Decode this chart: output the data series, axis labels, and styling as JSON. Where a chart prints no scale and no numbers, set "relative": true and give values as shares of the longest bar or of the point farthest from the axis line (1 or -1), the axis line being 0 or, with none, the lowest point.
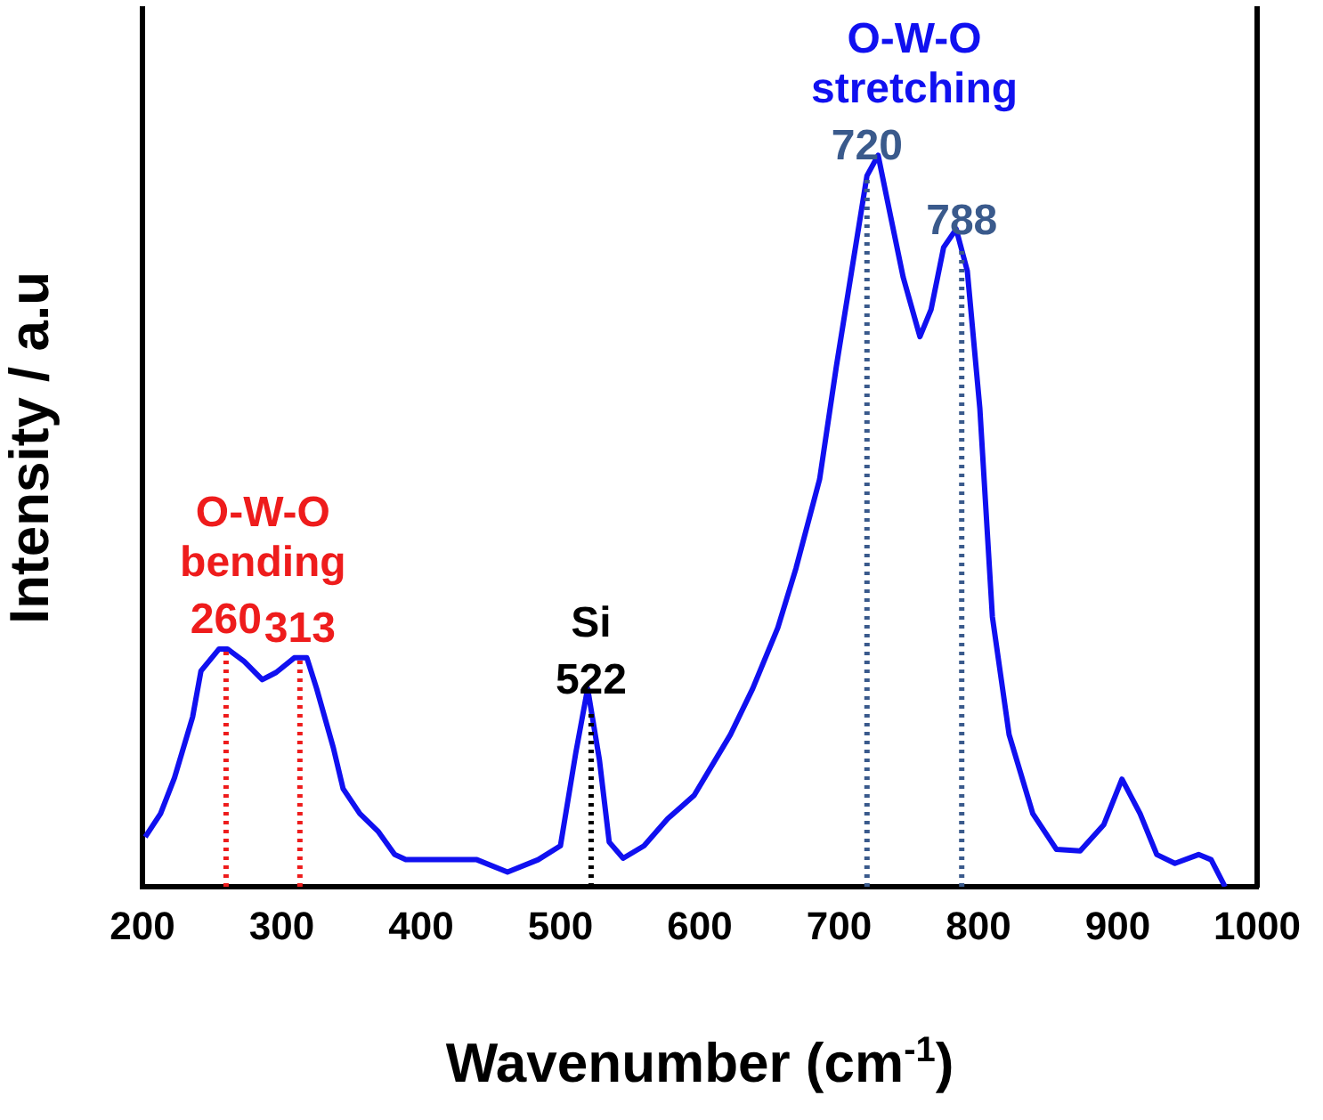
{
  "chart_data": {
    "type": "line",
    "relative": true,
    "xlabel": "Wavenumber (cm$^{-1}$)",
    "ylabel": "Intensity / a.u",
    "xlim": [
      200,
      1000
    ],
    "xticks": [
      200,
      300,
      400,
      500,
      600,
      700,
      800,
      900,
      1000
    ],
    "grid": false,
    "legend": false,
    "marker": "none",
    "line_style": "solid",
    "series": [
      {
        "color": "#1010f0",
        "x": [
          202,
          213,
          223,
          236,
          242,
          255,
          261,
          273,
          286,
          296,
          309,
          318,
          325,
          337,
          344,
          356,
          369,
          381,
          389,
          415,
          440,
          462,
          484,
          500,
          511,
          519.5,
          528,
          535,
          545,
          560,
          577,
          596,
          622,
          638,
          656,
          669,
          686,
          698,
          709,
          720,
          728,
          737,
          746,
          758,
          766,
          775,
          784,
          792,
          801,
          810,
          822,
          839,
          856,
          873,
          890,
          903,
          916,
          928,
          941,
          958,
          967,
          977
        ],
        "values": [
          0.068,
          0.1,
          0.149,
          0.232,
          0.295,
          0.325,
          0.325,
          0.308,
          0.283,
          0.293,
          0.313,
          0.313,
          0.271,
          0.19,
          0.134,
          0.1,
          0.076,
          0.044,
          0.037,
          0.037,
          0.037,
          0.02,
          0.037,
          0.056,
          0.183,
          0.271,
          0.173,
          0.061,
          0.039,
          0.056,
          0.093,
          0.125,
          0.208,
          0.271,
          0.354,
          0.435,
          0.557,
          0.711,
          0.842,
          0.972,
          1,
          0.916,
          0.833,
          0.752,
          0.789,
          0.874,
          0.899,
          0.842,
          0.654,
          0.369,
          0.208,
          0.1,
          0.051,
          0.049,
          0.085,
          0.147,
          0.1,
          0.044,
          0.032,
          0.044,
          0.037,
          0
        ]
      }
    ],
    "ref_lines": [
      {
        "axis": "x",
        "value": 260,
        "label": "260",
        "color": "#ee1c1c",
        "line_style": "dotted"
      },
      {
        "axis": "x",
        "value": 313,
        "label": "313",
        "color": "#ee1c1c",
        "line_style": "dotted"
      },
      {
        "axis": "x",
        "value": 522,
        "label": "522",
        "color": "#000000",
        "line_style": "dotted"
      },
      {
        "axis": "x",
        "value": 720,
        "label": "720",
        "color": "#3a5a8c",
        "line_style": "dotted"
      },
      {
        "axis": "x",
        "value": 788,
        "label": "788",
        "color": "#3a5a8c",
        "line_style": "dotted"
      }
    ],
    "annotations": [
      "O-W-O bending",
      "Si",
      "O-W-O stretching"
    ]
  }
}
